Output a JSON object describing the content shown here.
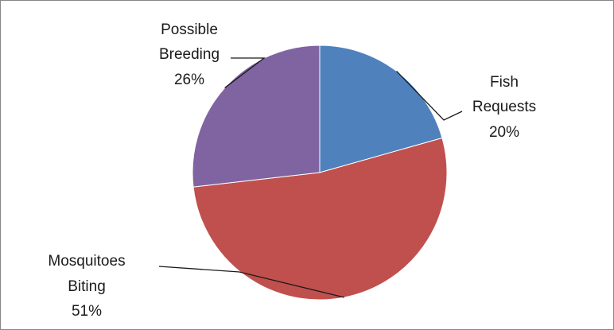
{
  "chart_data": {
    "type": "pie",
    "title": "",
    "slices": [
      {
        "name_lines": [
          "Fish",
          "Requests"
        ],
        "pct_label": "20%",
        "value": 20,
        "color": "#4f81bd"
      },
      {
        "name_lines": [
          "Mosquitoes",
          "Biting"
        ],
        "pct_label": "51%",
        "value": 51,
        "color": "#c0504d"
      },
      {
        "name_lines": [
          "Possible",
          "Breeding"
        ],
        "pct_label": "26%",
        "value": 26,
        "color": "#8064a2"
      }
    ],
    "legend": "none"
  }
}
